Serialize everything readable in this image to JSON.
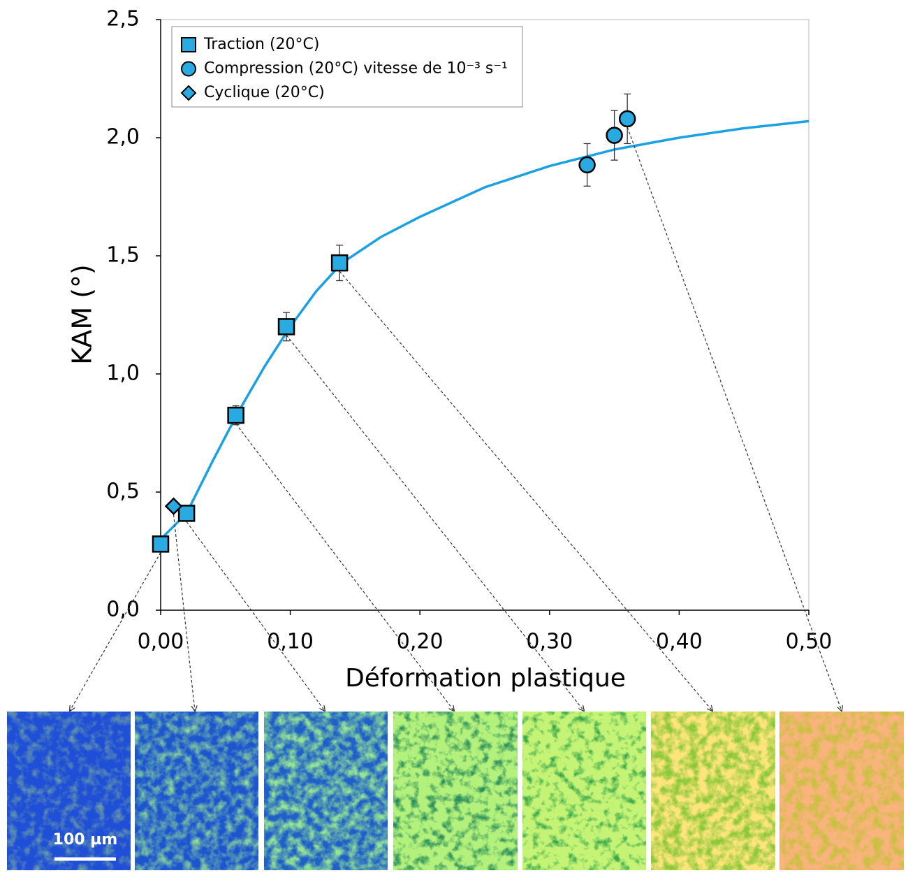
{
  "chart_data": {
    "type": "scatter",
    "y_label": "KAM (°)",
    "x_label": "Déformation plastique",
    "xlim": [
      0,
      0.5
    ],
    "ylim": [
      0,
      2.5
    ],
    "xticks": [
      {
        "value": 0,
        "label": "0,00"
      },
      {
        "value": 0.1,
        "label": "0,10"
      },
      {
        "value": 0.2,
        "label": "0,20"
      },
      {
        "value": 0.3,
        "label": "0,30"
      },
      {
        "value": 0.4,
        "label": "0,40"
      },
      {
        "value": 0.5,
        "label": "0,50"
      }
    ],
    "yticks": [
      {
        "value": 0,
        "label": "0,0"
      },
      {
        "value": 0.5,
        "label": "0,5"
      },
      {
        "value": 1,
        "label": "1,0"
      },
      {
        "value": 1.5,
        "label": "1,5"
      },
      {
        "value": 2,
        "label": "2,0"
      },
      {
        "value": 2.5,
        "label": "2,5"
      }
    ],
    "legend_position": "upper left",
    "marker_color": "#29abe2",
    "series": [
      {
        "name": "Traction (20°C)",
        "marker": "square",
        "x": [
          0,
          0.02,
          0.058,
          0.097,
          0.138
        ],
        "values": [
          0.28,
          0.41,
          0.825,
          1.2,
          1.47
        ],
        "errors": [
          0.01,
          0.02,
          0.04,
          0.06,
          0.075
        ]
      },
      {
        "name": "Compression (20°C) vitesse de 10⁻³ s⁻¹",
        "marker": "circle",
        "x": [
          0.329,
          0.35,
          0.36
        ],
        "values": [
          1.885,
          2.01,
          2.08
        ],
        "errors": [
          0.09,
          0.105,
          0.105
        ]
      },
      {
        "name": "Cyclique (20°C)",
        "marker": "diamond",
        "x": [
          0.01
        ],
        "values": [
          0.44
        ]
      }
    ],
    "fit_curve": {
      "color": "#1ba1e2",
      "x": [
        0,
        0.02,
        0.04,
        0.06,
        0.08,
        0.1,
        0.12,
        0.14,
        0.17,
        0.2,
        0.25,
        0.3,
        0.35,
        0.4,
        0.45,
        0.5
      ],
      "values": [
        0.3,
        0.41,
        0.63,
        0.84,
        1.03,
        1.2,
        1.35,
        1.47,
        1.58,
        1.665,
        1.79,
        1.88,
        1.95,
        2.0,
        2.04,
        2.07
      ]
    }
  },
  "micrographs": {
    "scale_bar": "100 µm"
  }
}
